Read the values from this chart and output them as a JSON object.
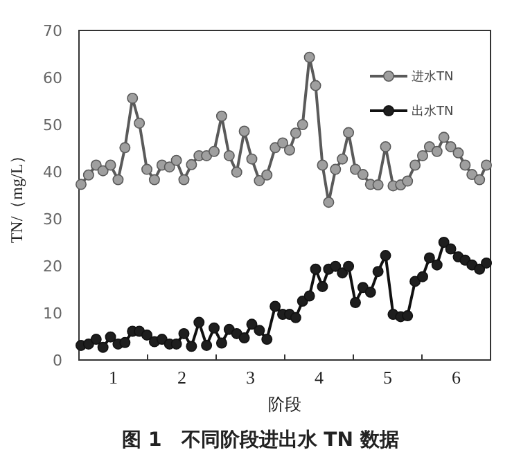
{
  "chart_data": {
    "type": "line",
    "title": "图 1　不同阶段进出水 TN 数据",
    "xlabel": "阶段",
    "ylabel": "TN/（mg/L）",
    "x": [
      0.53,
      0.64,
      0.75,
      0.85,
      0.96,
      1.07,
      1.17,
      1.28,
      1.38,
      1.49,
      1.6,
      1.71,
      1.82,
      1.92,
      2.03,
      2.14,
      2.25,
      2.36,
      2.47,
      2.58,
      2.69,
      2.8,
      2.91,
      3.02,
      3.13,
      3.24,
      3.36,
      3.47,
      3.57,
      3.66,
      3.76,
      3.86,
      3.95,
      4.05,
      4.14,
      4.24,
      4.34,
      4.43,
      4.53,
      4.64,
      4.75,
      4.86,
      4.97,
      5.08,
      5.19,
      5.29,
      5.4,
      5.51,
      5.61,
      5.72,
      5.82,
      5.92,
      6.03,
      6.13,
      6.23,
      6.34,
      6.44
    ],
    "series": [
      {
        "name": "进水TN",
        "color": "#5a5a5a",
        "values": [
          37.3,
          39.3,
          41.4,
          40.2,
          41.4,
          38.3,
          45.1,
          55.6,
          50.3,
          40.5,
          38.3,
          41.4,
          41,
          42.4,
          38.3,
          41.5,
          43.4,
          43.4,
          44.3,
          51.8,
          43.4,
          39.9,
          48.6,
          42.7,
          38.1,
          39.3,
          45.1,
          46.1,
          44.6,
          48.2,
          50,
          64.3,
          58.3,
          41.4,
          33.5,
          40.5,
          42.7,
          48.3,
          40.5,
          39.4,
          37.3,
          37.2,
          45.3,
          37,
          37.2,
          38,
          41.4,
          43.4,
          45.3,
          44.3,
          47.3,
          45.3,
          44,
          41.4,
          39.4,
          38.3,
          41.4
        ]
      },
      {
        "name": "出水TN",
        "color": "#111111",
        "values": [
          3.1,
          3.4,
          4.4,
          2.7,
          4.9,
          3.4,
          3.7,
          6.1,
          6.1,
          5.3,
          3.9,
          4.4,
          3.4,
          3.4,
          5.6,
          2.9,
          8,
          3.1,
          6.8,
          3.6,
          6.5,
          5.6,
          4.7,
          7.6,
          6.3,
          4.4,
          11.4,
          9.7,
          9.7,
          9,
          12.5,
          13.6,
          19.3,
          15.6,
          19.3,
          19.9,
          18.5,
          19.9,
          12.2,
          15.4,
          14.4,
          18.8,
          22.2,
          9.7,
          9.2,
          9.4,
          16.7,
          17.7,
          21.7,
          20.2,
          25,
          23.6,
          21.9,
          21.2,
          20.2,
          19.3,
          20.6
        ]
      }
    ],
    "xlim": [
      0.5,
      6.5
    ],
    "xticks": [
      1,
      {
        "value": 1.5,
        "label": null
      },
      2,
      {
        "value": 2.5,
        "label": null
      },
      3,
      {
        "value": 3.5,
        "label": null
      },
      4,
      {
        "value": 4.5,
        "label": null
      },
      5,
      {
        "value": 5.5,
        "label": null
      },
      6
    ],
    "ylim": [
      0,
      70
    ],
    "yticks": [
      0,
      10,
      20,
      30,
      40,
      50,
      60,
      70
    ],
    "grid": false,
    "legend": "top right",
    "marker": "circle",
    "line_style": "solid"
  }
}
